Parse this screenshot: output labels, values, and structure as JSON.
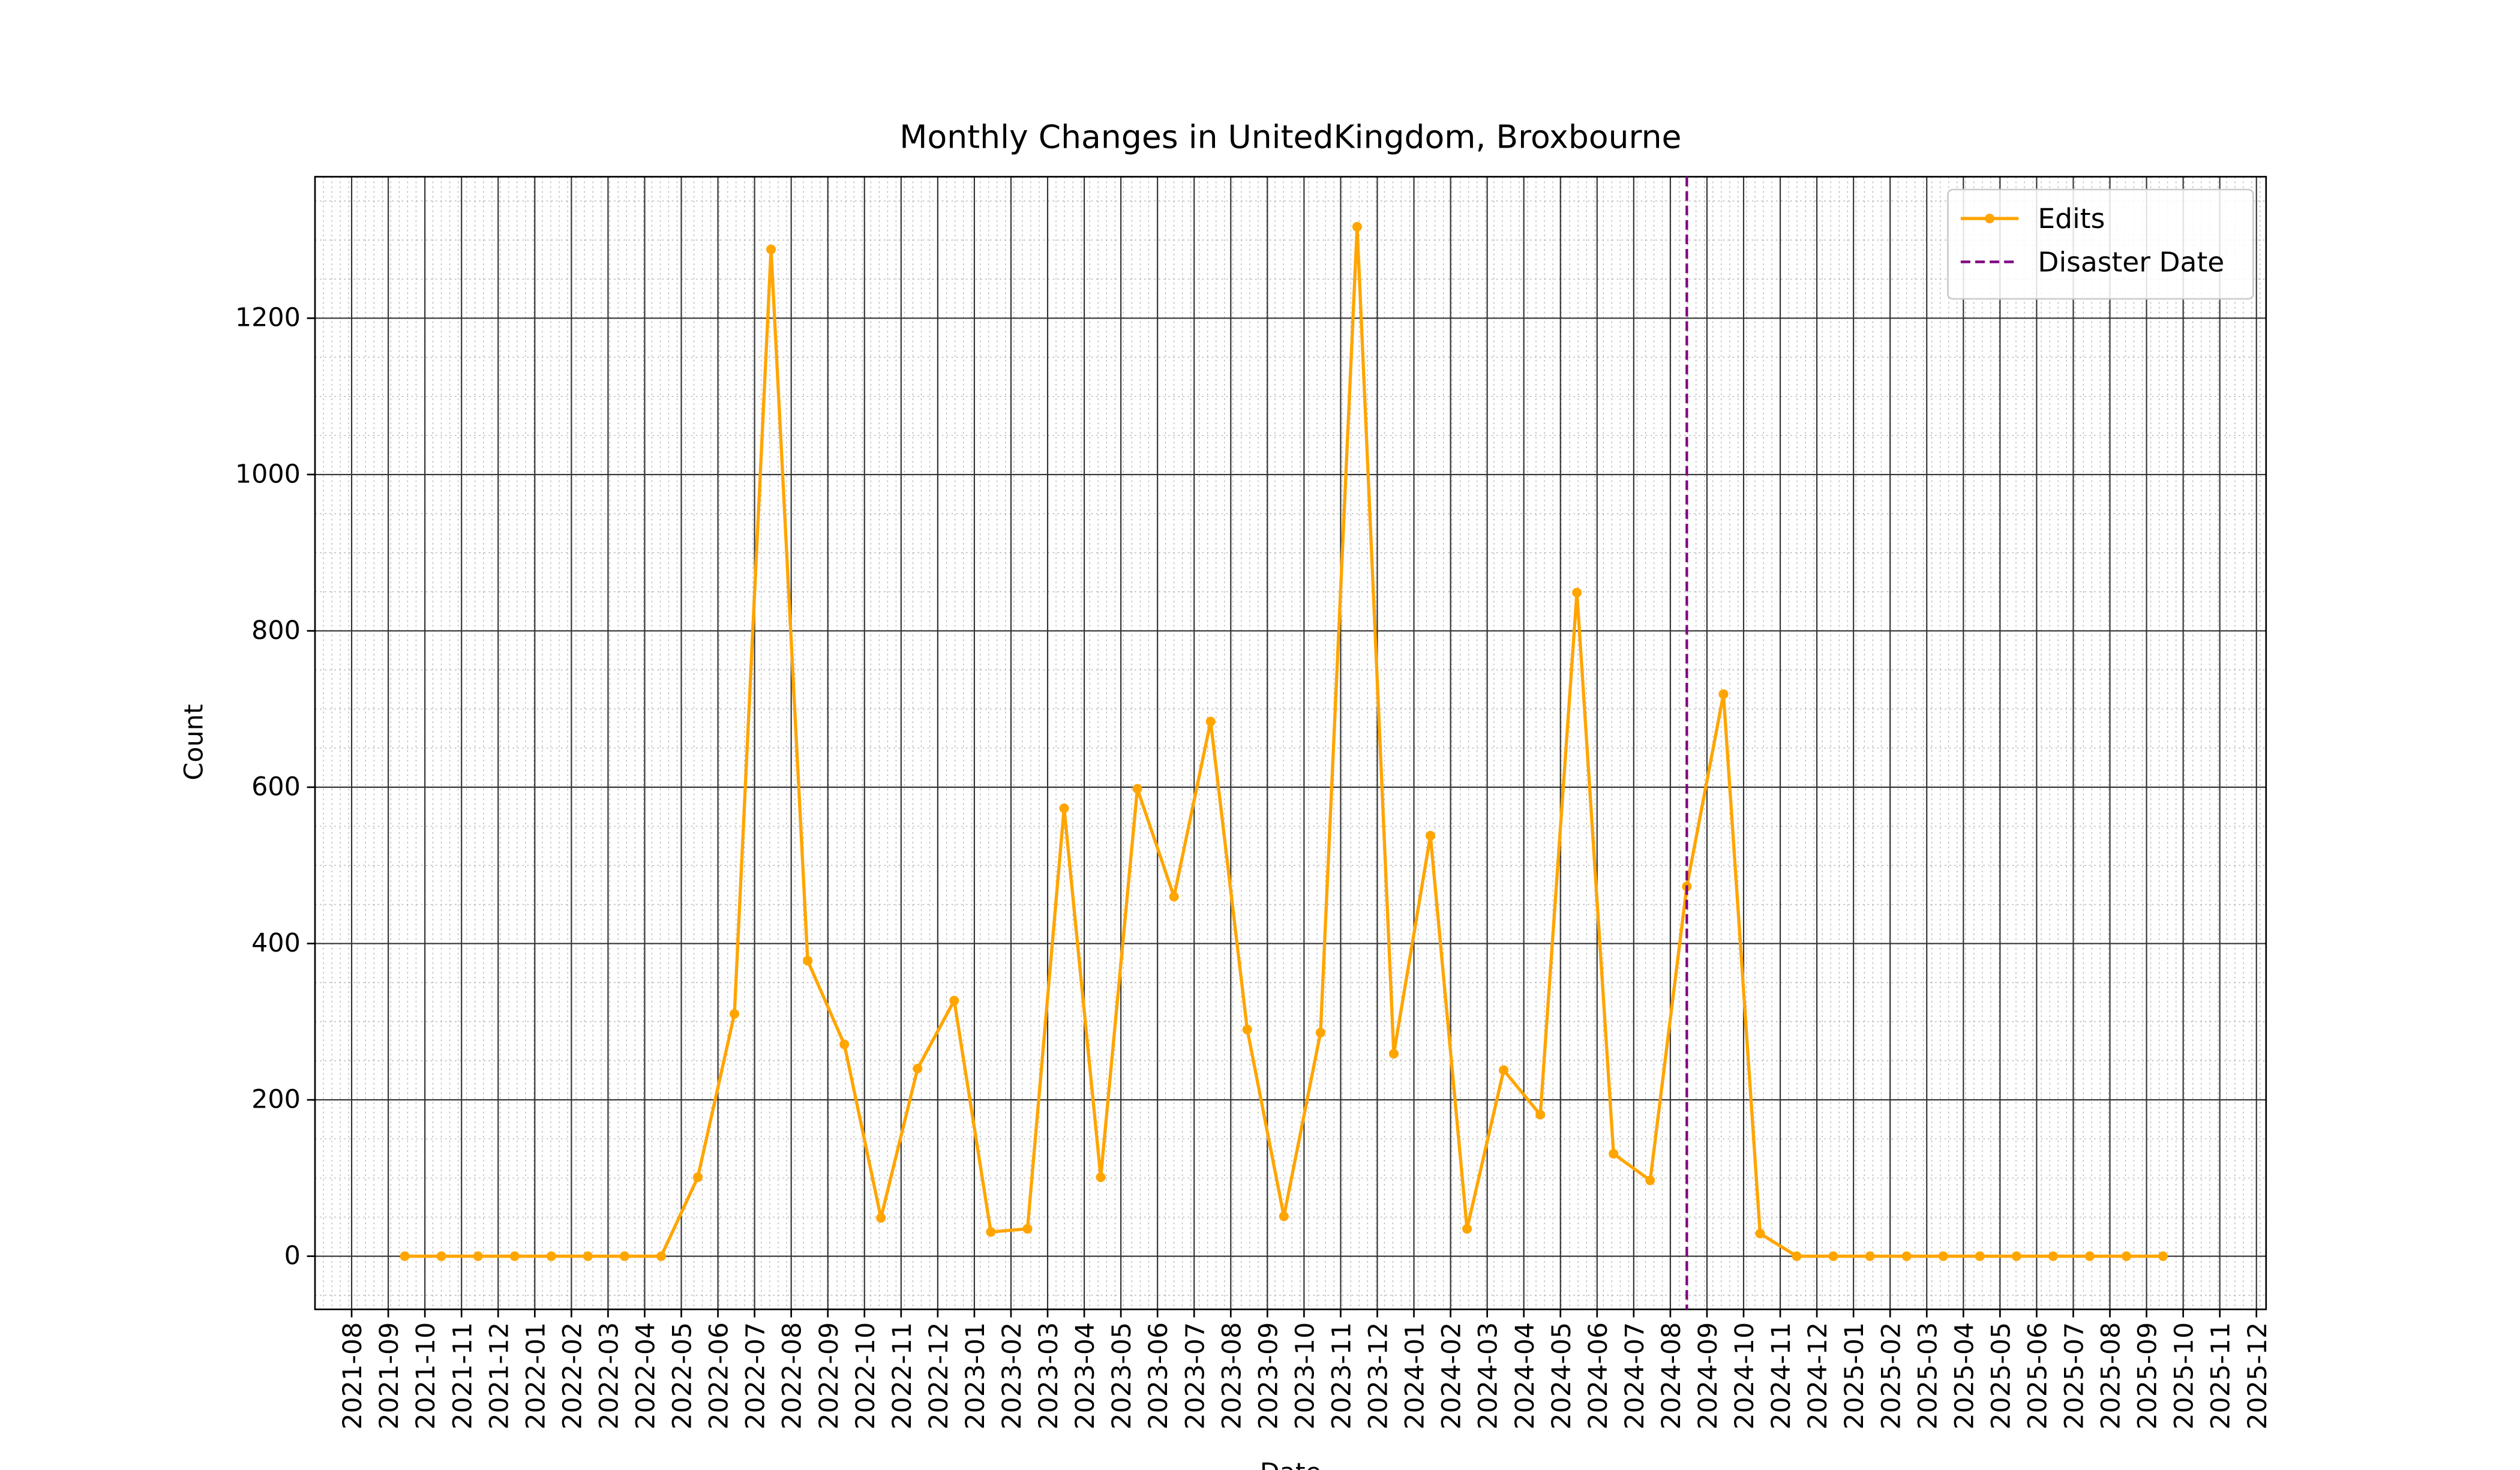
{
  "chart_data": {
    "type": "line",
    "title": "Monthly Changes in UnitedKingdom, Broxbourne",
    "x_label": "Date",
    "y_label": "Count",
    "x": [
      "2021-09",
      "2021-10",
      "2021-11",
      "2021-12",
      "2022-01",
      "2022-02",
      "2022-03",
      "2022-04",
      "2022-05",
      "2022-06",
      "2022-07",
      "2022-08",
      "2022-09",
      "2022-10",
      "2022-11",
      "2022-12",
      "2023-01",
      "2023-02",
      "2023-03",
      "2023-04",
      "2023-05",
      "2023-06",
      "2023-07",
      "2023-08",
      "2023-09",
      "2023-10",
      "2023-11",
      "2023-12",
      "2024-01",
      "2024-02",
      "2024-03",
      "2024-04",
      "2024-05",
      "2024-06",
      "2024-07",
      "2024-08",
      "2024-09",
      "2024-10",
      "2024-11",
      "2024-12",
      "2025-01",
      "2025-02",
      "2025-03",
      "2025-04",
      "2025-05",
      "2025-06",
      "2025-07",
      "2025-08",
      "2025-09"
    ],
    "series": [
      {
        "name": "Edits",
        "color": "#ffa500",
        "values": [
          0,
          0,
          0,
          0,
          0,
          0,
          0,
          0,
          101,
          310,
          1288,
          378,
          271,
          49,
          240,
          327,
          31,
          35,
          573,
          101,
          598,
          460,
          684,
          290,
          51,
          286,
          1317,
          259,
          538,
          35,
          238,
          181,
          849,
          131,
          97,
          473,
          719,
          29,
          0,
          0,
          0,
          0,
          0,
          0,
          0,
          0,
          0,
          0,
          0
        ]
      }
    ],
    "vline": {
      "name": "Disaster Date",
      "x": "2024-08",
      "color": "#800080"
    },
    "xlim": [
      "2021-07",
      "2025-12"
    ],
    "xticks": [
      "2021-08",
      "2021-09",
      "2021-10",
      "2021-11",
      "2021-12",
      "2022-01",
      "2022-02",
      "2022-03",
      "2022-04",
      "2022-05",
      "2022-06",
      "2022-07",
      "2022-08",
      "2022-09",
      "2022-10",
      "2022-11",
      "2022-12",
      "2023-01",
      "2023-02",
      "2023-03",
      "2023-04",
      "2023-05",
      "2023-06",
      "2023-07",
      "2023-08",
      "2023-09",
      "2023-10",
      "2023-11",
      "2023-12",
      "2024-01",
      "2024-02",
      "2024-03",
      "2024-04",
      "2024-05",
      "2024-06",
      "2024-07",
      "2024-08",
      "2024-09",
      "2024-10",
      "2024-11",
      "2024-12",
      "2025-01",
      "2025-02",
      "2025-03",
      "2025-04",
      "2025-05",
      "2025-06",
      "2025-07",
      "2025-08",
      "2025-09",
      "2025-10",
      "2025-11",
      "2025-12"
    ],
    "ylim": [
      -68,
      1381
    ],
    "yticks": [
      0,
      200,
      400,
      600,
      800,
      1000,
      1200
    ],
    "grid": true,
    "legend": "upper right"
  }
}
